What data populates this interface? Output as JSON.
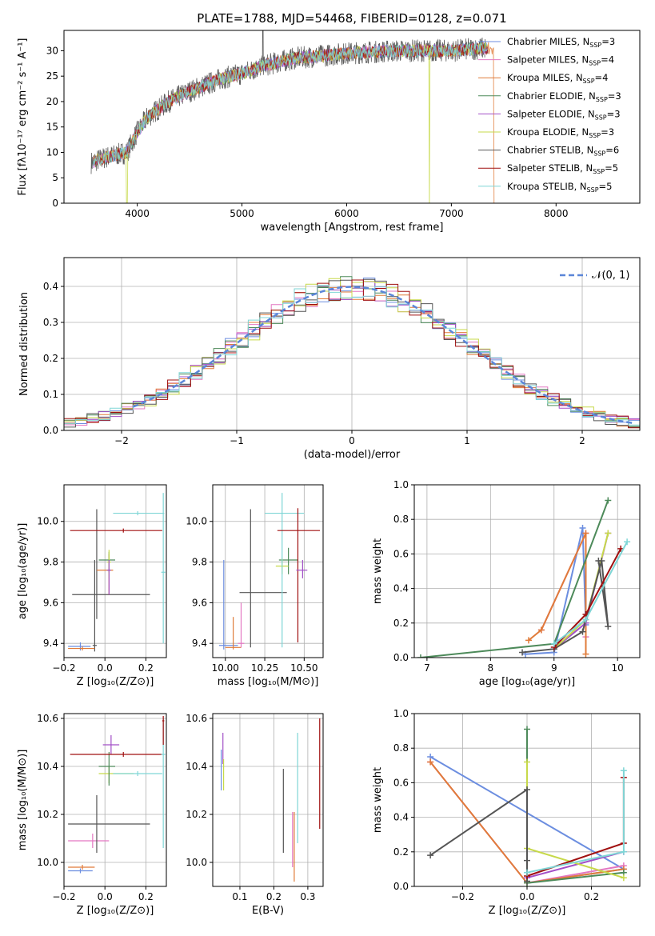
{
  "figure_title": "PLATE=1788, MJD=54468, FIBERID=0128, z=0.071",
  "series_colors": [
    "#6c8ee0",
    "#e377c2",
    "#e07b39",
    "#4d8a5a",
    "#a24fc7",
    "#c7d94a",
    "#555555",
    "#a01010",
    "#7fd6d6"
  ],
  "chart_data": [
    {
      "type": "line",
      "name": "spectrum",
      "xlabel": "wavelength [Angstrom, rest frame]",
      "ylabel": "Flux [fλ10⁻¹⁷ erg cm⁻² s⁻¹ A⁻¹]",
      "xlim": [
        3300,
        8800
      ],
      "ylim": [
        0,
        34
      ],
      "xticks": [
        4000,
        5000,
        6000,
        7000,
        8000
      ],
      "yticks": [
        0,
        5,
        10,
        15,
        20,
        25,
        30
      ],
      "legend_position": "right",
      "legend": [
        {
          "label": "Chabrier MILES, N",
          "sub": "SSP",
          "suffix": "=3"
        },
        {
          "label": "Salpeter MILES, N",
          "sub": "SSP",
          "suffix": "=4"
        },
        {
          "label": "Kroupa MILES, N",
          "sub": "SSP",
          "suffix": "=4"
        },
        {
          "label": "Chabrier ELODIE, N",
          "sub": "SSP",
          "suffix": "=3"
        },
        {
          "label": "Salpeter ELODIE, N",
          "sub": "SSP",
          "suffix": "=3"
        },
        {
          "label": "Kroupa ELODIE, N",
          "sub": "SSP",
          "suffix": "=3"
        },
        {
          "label": "Chabrier STELIB, N",
          "sub": "SSP",
          "suffix": "=6"
        },
        {
          "label": "Salpeter STELIB, N",
          "sub": "SSP",
          "suffix": "=5"
        },
        {
          "label": "Kroupa STELIB, N",
          "sub": "SSP",
          "suffix": "=5"
        }
      ],
      "continuum": {
        "x": [
          3560,
          3700,
          3900,
          4000,
          4100,
          4300,
          4500,
          4800,
          5000,
          5200,
          5500,
          6000,
          6500,
          7000,
          7300
        ],
        "y": [
          8,
          9,
          10,
          14,
          17,
          20,
          22,
          24.5,
          25.5,
          27,
          28.5,
          29.5,
          30,
          30,
          30.5
        ]
      }
    },
    {
      "type": "histogram",
      "name": "residuals",
      "xlabel": "(data-model)/error",
      "ylabel": "Normed distribution",
      "xlim": [
        -2.5,
        2.5
      ],
      "ylim": [
        0,
        0.48
      ],
      "xticks": [
        -2,
        -1,
        0,
        1,
        2
      ],
      "yticks": [
        0.0,
        0.1,
        0.2,
        0.3,
        0.4
      ],
      "grid": true,
      "gaussian_label": "𝒩(0, 1)",
      "gaussian": {
        "mean": 0,
        "sigma": 1,
        "x_range": [
          -1.9,
          2.5
        ]
      },
      "bin_width": 0.1,
      "bin_start": -2.5
    },
    {
      "type": "scatter",
      "name": "age-vs-Z",
      "xlabel": "Z [log₁₀(Z/Z⊙)]",
      "ylabel": "age  [log₁₀(age/yr)]",
      "xlim": [
        -0.2,
        0.3
      ],
      "ylim": [
        9.33,
        10.18
      ],
      "xticks": [
        -0.2,
        0.0,
        0.2
      ],
      "yticks": [
        9.4,
        9.6,
        9.8,
        10.0
      ],
      "grid": true,
      "points": [
        {
          "x": -0.12,
          "y": 9.385,
          "xerr": [
            0.06,
            0.05
          ],
          "yerr": [
            0.02,
            0.02
          ],
          "c": 0
        },
        {
          "x": -0.05,
          "y": 9.39,
          "xerr": [
            0.01,
            0.01
          ],
          "yerr": [
            0.03,
            0.42
          ],
          "c": 6
        },
        {
          "x": -0.11,
          "y": 9.375,
          "xerr": [
            0.07,
            0.06
          ],
          "yerr": [
            0.01,
            0.01
          ],
          "c": 2
        },
        {
          "x": -0.04,
          "y": 9.64,
          "xerr": [
            0.12,
            0.26
          ],
          "yerr": [
            0.12,
            0.42
          ],
          "c": 6
        },
        {
          "x": 0.02,
          "y": 9.76,
          "xerr": [
            0.06,
            0.02
          ],
          "yerr": [
            0.12,
            0.08
          ],
          "c": 2
        },
        {
          "x": 0.02,
          "y": 9.81,
          "xerr": [
            0.05,
            0.03
          ],
          "yerr": [
            0.06,
            0.04
          ],
          "c": 3
        },
        {
          "x": 0.02,
          "y": 9.8,
          "xerr": [
            0.01,
            0.01
          ],
          "yerr": [
            0.08,
            0.06
          ],
          "c": 5
        },
        {
          "x": 0.02,
          "y": 9.76,
          "xerr": [
            0.01,
            0.01
          ],
          "yerr": [
            0.12,
            0.05
          ],
          "c": 4
        },
        {
          "x": 0.09,
          "y": 9.955,
          "xerr": [
            0.26,
            0.19
          ],
          "yerr": [
            0.01,
            0.01
          ],
          "c": 7
        },
        {
          "x": 0.16,
          "y": 10.04,
          "xerr": [
            0.12,
            0.13
          ],
          "yerr": [
            0.01,
            0.01
          ],
          "c": 8
        },
        {
          "x": 0.285,
          "y": 9.75,
          "xerr": [
            0.01,
            0.01
          ],
          "yerr": [
            0.35,
            0.39
          ],
          "c": 8
        }
      ]
    },
    {
      "type": "scatter",
      "name": "age-vs-mass",
      "xlabel": "mass [log₁₀(M/M⊙)]",
      "ylabel": "",
      "xlim": [
        9.92,
        10.62
      ],
      "ylim": [
        9.33,
        10.18
      ],
      "xticks": [
        10.0,
        10.25,
        10.5
      ],
      "yticks": [
        9.4,
        9.6,
        9.8,
        10.0
      ],
      "grid": true,
      "points": [
        {
          "x": 9.99,
          "y": 9.39,
          "xerr": [
            0.03,
            0.09
          ],
          "yerr": [
            0.02,
            0.42
          ],
          "c": 0
        },
        {
          "x": 10.05,
          "y": 9.38,
          "xerr": [
            0.05,
            0.05
          ],
          "yerr": [
            0.01,
            0.15
          ],
          "c": 2
        },
        {
          "x": 10.1,
          "y": 9.4,
          "xerr": [
            0.02,
            0.02
          ],
          "yerr": [
            0.02,
            0.2
          ],
          "c": 1
        },
        {
          "x": 10.16,
          "y": 9.65,
          "xerr": [
            0.07,
            0.23
          ],
          "yerr": [
            0.27,
            0.41
          ],
          "c": 6
        },
        {
          "x": 10.4,
          "y": 9.81,
          "xerr": [
            0.06,
            0.06
          ],
          "yerr": [
            0.07,
            0.06
          ],
          "c": 3
        },
        {
          "x": 10.36,
          "y": 9.78,
          "xerr": [
            0.04,
            0.04
          ],
          "yerr": [
            0.04,
            0.04
          ],
          "c": 5
        },
        {
          "x": 10.36,
          "y": 10.04,
          "xerr": [
            0.11,
            0.14
          ],
          "yerr": [
            0.66,
            0.1
          ],
          "c": 8
        },
        {
          "x": 10.46,
          "y": 9.955,
          "xerr": [
            0.13,
            0.14
          ],
          "yerr": [
            0.55,
            0.11
          ],
          "c": 7
        },
        {
          "x": 10.49,
          "y": 9.76,
          "xerr": [
            0.04,
            0.03
          ],
          "yerr": [
            0.04,
            0.05
          ],
          "c": 4
        }
      ]
    },
    {
      "type": "line",
      "name": "weight-vs-age",
      "xlabel": "age  [log₁₀(age/yr)]",
      "ylabel": "mass weight",
      "xlim": [
        6.8,
        10.35
      ],
      "ylim": [
        0,
        1.0
      ],
      "xticks": [
        7,
        8,
        9,
        10
      ],
      "yticks": [
        0.0,
        0.2,
        0.4,
        0.6,
        0.8,
        1.0
      ],
      "grid": true,
      "series": [
        {
          "c": 0,
          "x": [
            8.55,
            9.0,
            9.45,
            9.5
          ],
          "y": [
            0.02,
            0.03,
            0.75,
            0.19
          ]
        },
        {
          "c": 1,
          "x": [
            8.8,
            9.5,
            9.5
          ],
          "y": [
            0.16,
            0.72,
            0.12
          ]
        },
        {
          "c": 2,
          "x": [
            8.6,
            8.8,
            9.5,
            9.5
          ],
          "y": [
            0.1,
            0.16,
            0.72,
            0.02
          ]
        },
        {
          "c": 3,
          "x": [
            6.9,
            9.0,
            9.85
          ],
          "y": [
            0.0,
            0.08,
            0.91
          ]
        },
        {
          "c": 4,
          "x": [
            9.0,
            9.5,
            9.85
          ],
          "y": [
            0.05,
            0.2,
            0.72
          ]
        },
        {
          "c": 5,
          "x": [
            9.0,
            9.5,
            9.85
          ],
          "y": [
            0.05,
            0.22,
            0.72
          ]
        },
        {
          "c": 6,
          "x": [
            8.5,
            9.0,
            9.45,
            9.75,
            9.85,
            9.7
          ],
          "y": [
            0.03,
            0.05,
            0.15,
            0.56,
            0.18,
            0.56
          ]
        },
        {
          "c": 7,
          "x": [
            9.0,
            9.5,
            10.05
          ],
          "y": [
            0.06,
            0.25,
            0.63
          ]
        },
        {
          "c": 8,
          "x": [
            9.0,
            9.5,
            10.15
          ],
          "y": [
            0.08,
            0.22,
            0.67
          ]
        }
      ]
    },
    {
      "type": "scatter",
      "name": "mass-vs-Z",
      "xlabel": "Z [log₁₀(Z/Z⊙)]",
      "ylabel": "mass [log₁₀(M/M⊙)]",
      "xlim": [
        -0.2,
        0.3
      ],
      "ylim": [
        9.9,
        10.62
      ],
      "xticks": [
        -0.2,
        0.0,
        0.2
      ],
      "yticks": [
        10.0,
        10.2,
        10.4,
        10.6
      ],
      "grid": true,
      "points": [
        {
          "x": -0.12,
          "y": 9.965,
          "xerr": [
            0.06,
            0.06
          ],
          "yerr": [
            0.01,
            0.01
          ],
          "c": 0
        },
        {
          "x": -0.11,
          "y": 9.98,
          "xerr": [
            0.07,
            0.06
          ],
          "yerr": [
            0.01,
            0.01
          ],
          "c": 2
        },
        {
          "x": -0.06,
          "y": 10.09,
          "xerr": [
            0.12,
            0.08
          ],
          "yerr": [
            0.03,
            0.03
          ],
          "c": 1
        },
        {
          "x": -0.04,
          "y": 10.16,
          "xerr": [
            0.14,
            0.26
          ],
          "yerr": [
            0.12,
            0.12
          ],
          "c": 6
        },
        {
          "x": 0.02,
          "y": 10.37,
          "xerr": [
            0.05,
            0.12
          ],
          "yerr": [
            0.04,
            0.03
          ],
          "c": 5
        },
        {
          "x": 0.02,
          "y": 10.4,
          "xerr": [
            0.05,
            0.03
          ],
          "yerr": [
            0.08,
            0.06
          ],
          "c": 3
        },
        {
          "x": 0.03,
          "y": 10.49,
          "xerr": [
            0.04,
            0.04
          ],
          "yerr": [
            0.04,
            0.04
          ],
          "c": 4
        },
        {
          "x": 0.09,
          "y": 10.45,
          "xerr": [
            0.26,
            0.19
          ],
          "yerr": [
            0.01,
            0.01
          ],
          "c": 7
        },
        {
          "x": 0.16,
          "y": 10.37,
          "xerr": [
            0.12,
            0.12
          ],
          "yerr": [
            0.01,
            0.01
          ],
          "c": 8
        },
        {
          "x": 0.285,
          "y": 10.45,
          "xerr": [
            0.01,
            0.01
          ],
          "yerr": [
            0.39,
            0.15
          ],
          "c": 8
        },
        {
          "x": 0.285,
          "y": 10.59,
          "xerr": [
            0.005,
            0.005
          ],
          "yerr": [
            0.1,
            0.02
          ],
          "c": 7
        }
      ]
    },
    {
      "type": "scatter",
      "name": "mass-vs-EBV",
      "xlabel": "E(B-V)",
      "ylabel": "",
      "xlim": [
        0.02,
        0.345
      ],
      "ylim": [
        9.9,
        10.62
      ],
      "xticks": [
        0.1,
        0.2,
        0.3
      ],
      "yticks": [
        10.0,
        10.2,
        10.4,
        10.6
      ],
      "grid": true,
      "points": [
        {
          "x": 0.045,
          "y": 10.4,
          "xerr": [
            0,
            0
          ],
          "yerr": [
            0.1,
            0.07
          ],
          "c": 0
        },
        {
          "x": 0.05,
          "y": 10.47,
          "xerr": [
            0,
            0
          ],
          "yerr": [
            0.06,
            0.07
          ],
          "c": 4
        },
        {
          "x": 0.052,
          "y": 10.37,
          "xerr": [
            0,
            0
          ],
          "yerr": [
            0.07,
            0.06
          ],
          "c": 5
        },
        {
          "x": 0.228,
          "y": 10.2,
          "xerr": [
            0,
            0
          ],
          "yerr": [
            0.16,
            0.19
          ],
          "c": 6
        },
        {
          "x": 0.255,
          "y": 10.1,
          "xerr": [
            0,
            0
          ],
          "yerr": [
            0.12,
            0.11
          ],
          "c": 1
        },
        {
          "x": 0.26,
          "y": 10.05,
          "xerr": [
            0,
            0
          ],
          "yerr": [
            0.13,
            0.16
          ],
          "c": 2
        },
        {
          "x": 0.27,
          "y": 10.3,
          "xerr": [
            0,
            0
          ],
          "yerr": [
            0.22,
            0.24
          ],
          "c": 8
        },
        {
          "x": 0.335,
          "y": 10.35,
          "xerr": [
            0,
            0
          ],
          "yerr": [
            0.21,
            0.25
          ],
          "c": 7
        }
      ]
    },
    {
      "type": "line",
      "name": "weight-vs-Z",
      "xlabel": "Z [log₁₀(Z/Z⊙)]",
      "ylabel": "mass weight",
      "xlim": [
        -0.35,
        0.35
      ],
      "ylim": [
        0,
        1.0
      ],
      "xticks": [
        -0.2,
        0.0,
        0.2
      ],
      "yticks": [
        0.0,
        0.2,
        0.4,
        0.6,
        0.8,
        1.0
      ],
      "grid": true,
      "series": [
        {
          "c": 0,
          "x": [
            -0.3,
            0.3,
            0.0
          ],
          "y": [
            0.75,
            0.1,
            0.02
          ]
        },
        {
          "c": 1,
          "x": [
            -0.3,
            0.0,
            0.3
          ],
          "y": [
            0.72,
            0.02,
            0.12
          ]
        },
        {
          "c": 2,
          "x": [
            -0.3,
            0.0,
            0.3
          ],
          "y": [
            0.72,
            0.02,
            0.1
          ]
        },
        {
          "c": 3,
          "x": [
            0.0,
            0.0,
            0.3
          ],
          "y": [
            0.91,
            0.02,
            0.08
          ]
        },
        {
          "c": 4,
          "x": [
            0.0,
            0.3
          ],
          "y": [
            0.05,
            0.2
          ]
        },
        {
          "c": 5,
          "x": [
            0.0,
            0.0,
            0.3
          ],
          "y": [
            0.72,
            0.22,
            0.05
          ]
        },
        {
          "c": 6,
          "x": [
            -0.3,
            0.0,
            0.0,
            0.0
          ],
          "y": [
            0.18,
            0.56,
            0.15,
            0.03
          ]
        },
        {
          "c": 7,
          "x": [
            0.0,
            0.3,
            0.3
          ],
          "y": [
            0.06,
            0.25,
            0.63
          ]
        },
        {
          "c": 8,
          "x": [
            0.0,
            0.3,
            0.3
          ],
          "y": [
            0.08,
            0.2,
            0.67
          ]
        }
      ]
    }
  ]
}
